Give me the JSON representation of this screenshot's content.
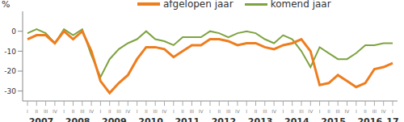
{
  "chart_data": {
    "type": "line",
    "y_label": "%",
    "legend": "top",
    "grid": false,
    "ylim": [
      -35,
      10
    ],
    "yticks": [
      -30,
      -20,
      -10,
      0
    ],
    "categories": [
      "I",
      "II",
      "III",
      "IV",
      "I",
      "II",
      "III",
      "IV",
      "I",
      "II",
      "III",
      "IV",
      "I",
      "II",
      "III",
      "IV",
      "I",
      "II",
      "III",
      "IV",
      "I",
      "II",
      "III",
      "IV",
      "I",
      "II",
      "III",
      "IV",
      "I",
      "II",
      "III",
      "IV",
      "I",
      "II",
      "III",
      "IV",
      "I",
      "II",
      "III",
      "IV",
      "I"
    ],
    "category_groups": [
      "2007",
      "2008",
      "2009",
      "2010",
      "2011",
      "2012",
      "2013",
      "2014",
      "2015",
      "2016",
      "17"
    ],
    "series": [
      {
        "name": "afgelopen jaar",
        "color": "#ee7d1e",
        "values": [
          -4,
          -2,
          -2,
          -6,
          0,
          -4,
          0,
          -10,
          -25,
          -31,
          -26,
          -22,
          -14,
          -8,
          -8,
          -9,
          -13,
          -10,
          -7,
          -7,
          -4,
          -4,
          -5,
          -7,
          -6,
          -6,
          -8,
          -9,
          -7,
          -6,
          -4,
          -10,
          -27,
          -26,
          -22,
          -25,
          -28,
          -26,
          -19,
          -18,
          -16
        ]
      },
      {
        "name": "komend jaar",
        "color": "#7ea340",
        "values": [
          -1,
          1,
          -1,
          -6,
          1,
          -2,
          1,
          -12,
          -23,
          -14,
          -9,
          -6,
          -4,
          0,
          -4,
          -5,
          -7,
          -3,
          -3,
          -3,
          0,
          -1,
          -3,
          -1,
          0,
          -1,
          -4,
          -6,
          -2,
          -4,
          -10,
          -18,
          -8,
          -11,
          -14,
          -14,
          -11,
          -7,
          -7,
          -6,
          -6
        ]
      }
    ]
  }
}
